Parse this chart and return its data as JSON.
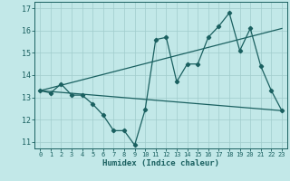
{
  "xlabel": "Humidex (Indice chaleur)",
  "bg_color": "#c2e8e8",
  "grid_color": "#a0cccc",
  "line_color": "#1a6060",
  "xlim": [
    -0.5,
    23.5
  ],
  "ylim": [
    10.7,
    17.3
  ],
  "xticks": [
    0,
    1,
    2,
    3,
    4,
    5,
    6,
    7,
    8,
    9,
    10,
    11,
    12,
    13,
    14,
    15,
    16,
    17,
    18,
    19,
    20,
    21,
    22,
    23
  ],
  "yticks": [
    11,
    12,
    13,
    14,
    15,
    16,
    17
  ],
  "line1_x": [
    0,
    1,
    2,
    3,
    4,
    5,
    6,
    7,
    8,
    9,
    10,
    11,
    12,
    13,
    14,
    15,
    16,
    17,
    18,
    19,
    20,
    21,
    22,
    23
  ],
  "line1_y": [
    13.3,
    13.2,
    13.6,
    13.1,
    13.1,
    12.7,
    12.2,
    11.5,
    11.5,
    10.85,
    12.45,
    15.6,
    15.7,
    13.7,
    14.5,
    14.5,
    15.7,
    16.2,
    16.8,
    15.1,
    16.1,
    14.4,
    13.3,
    12.4
  ],
  "line2_x": [
    0,
    23
  ],
  "line2_y": [
    13.3,
    12.4
  ],
  "line3_x": [
    0,
    23
  ],
  "line3_y": [
    13.3,
    16.1
  ]
}
